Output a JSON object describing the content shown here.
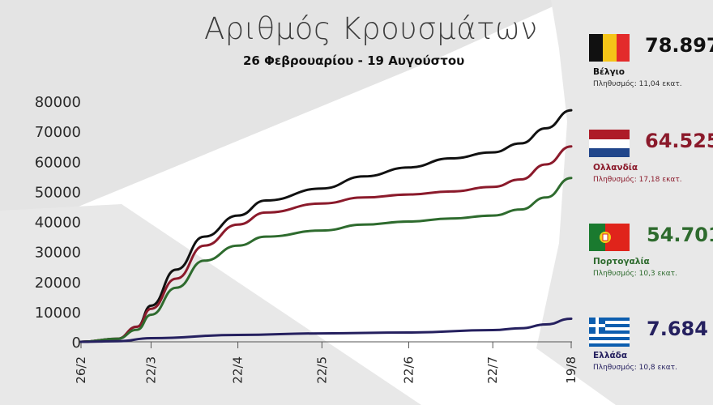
{
  "header": {
    "title": "Αριθμός Κρουσμάτων",
    "subtitle": "26 Φεβρουαρίου - 19 Αυγούστου"
  },
  "legend": [
    {
      "value": "78.897",
      "name": "Βέλγιο",
      "population": "Πληθυσμός: 11,04 εκατ.",
      "color": "#111111",
      "name_color": "#111111",
      "pop_color": "#333333",
      "icon": "belgium-flag-icon"
    },
    {
      "value": "64.525",
      "name": "Ολλανδία",
      "population": "Πληθυσμός: 17,18 εκατ.",
      "color": "#8b1a2b",
      "name_color": "#8b1a2b",
      "pop_color": "#8b1a2b",
      "icon": "netherlands-flag-icon"
    },
    {
      "value": "54.701",
      "name": "Πορτογαλία",
      "population": "Πληθυσμός: 10,3 εκατ.",
      "color": "#2e6b2e",
      "name_color": "#2e6b2e",
      "pop_color": "#2e6b2e",
      "icon": "portugal-flag-icon"
    },
    {
      "value": "7.684",
      "name": "Ελλάδα",
      "population": "Πληθυσμός: 10,8 εκατ.",
      "color": "#25205f",
      "name_color": "#25205f",
      "pop_color": "#25205f",
      "icon": "greece-flag-icon"
    }
  ],
  "chart_data": {
    "type": "line",
    "title": "Αριθμός Κρουσμάτων",
    "subtitle": "26 Φεβρουαρίου - 19 Αυγούστου",
    "xlabel": "",
    "ylabel": "",
    "ylim": [
      0,
      80000
    ],
    "yticks": [
      0,
      10000,
      20000,
      30000,
      40000,
      50000,
      60000,
      70000,
      80000
    ],
    "xticks": [
      "26/2",
      "22/3",
      "22/4",
      "22/5",
      "22/6",
      "22/7",
      "19/8"
    ],
    "grid": false,
    "legend": "right",
    "series": [
      {
        "name": "Βέλγιο",
        "color": "#111111",
        "x": [
          "26/2",
          "10/3",
          "17/3",
          "22/3",
          "31/3",
          "10/4",
          "22/4",
          "2/5",
          "22/5",
          "6/6",
          "22/6",
          "7/7",
          "22/7",
          "1/8",
          "10/8",
          "19/8"
        ],
        "y": [
          0,
          1000,
          5000,
          12000,
          24000,
          35000,
          42000,
          47000,
          51000,
          55000,
          58000,
          61000,
          63000,
          66000,
          71000,
          77000
        ]
      },
      {
        "name": "Ολλανδία",
        "color": "#8b1a2b",
        "x": [
          "26/2",
          "10/3",
          "17/3",
          "22/3",
          "31/3",
          "10/4",
          "22/4",
          "2/5",
          "22/5",
          "6/6",
          "22/6",
          "7/7",
          "22/7",
          "1/8",
          "10/8",
          "19/8"
        ],
        "y": [
          0,
          1000,
          5000,
          11000,
          21000,
          32000,
          39000,
          43000,
          46000,
          48000,
          49000,
          50000,
          51500,
          54000,
          59000,
          65000
        ]
      },
      {
        "name": "Πορτογαλία",
        "color": "#2e6b2e",
        "x": [
          "26/2",
          "10/3",
          "17/3",
          "22/3",
          "31/3",
          "10/4",
          "22/4",
          "2/5",
          "22/5",
          "6/6",
          "22/6",
          "7/7",
          "22/7",
          "1/8",
          "10/8",
          "19/8"
        ],
        "y": [
          0,
          1000,
          4000,
          9000,
          18000,
          27000,
          32000,
          35000,
          37000,
          39000,
          40000,
          41000,
          42000,
          44000,
          48000,
          54500
        ]
      },
      {
        "name": "Ελλάδα",
        "color": "#25205f",
        "x": [
          "26/2",
          "10/3",
          "22/3",
          "22/4",
          "22/5",
          "22/6",
          "22/7",
          "1/8",
          "10/8",
          "19/8"
        ],
        "y": [
          0,
          200,
          1200,
          2300,
          2800,
          3100,
          3900,
          4500,
          5800,
          7684
        ]
      }
    ]
  }
}
